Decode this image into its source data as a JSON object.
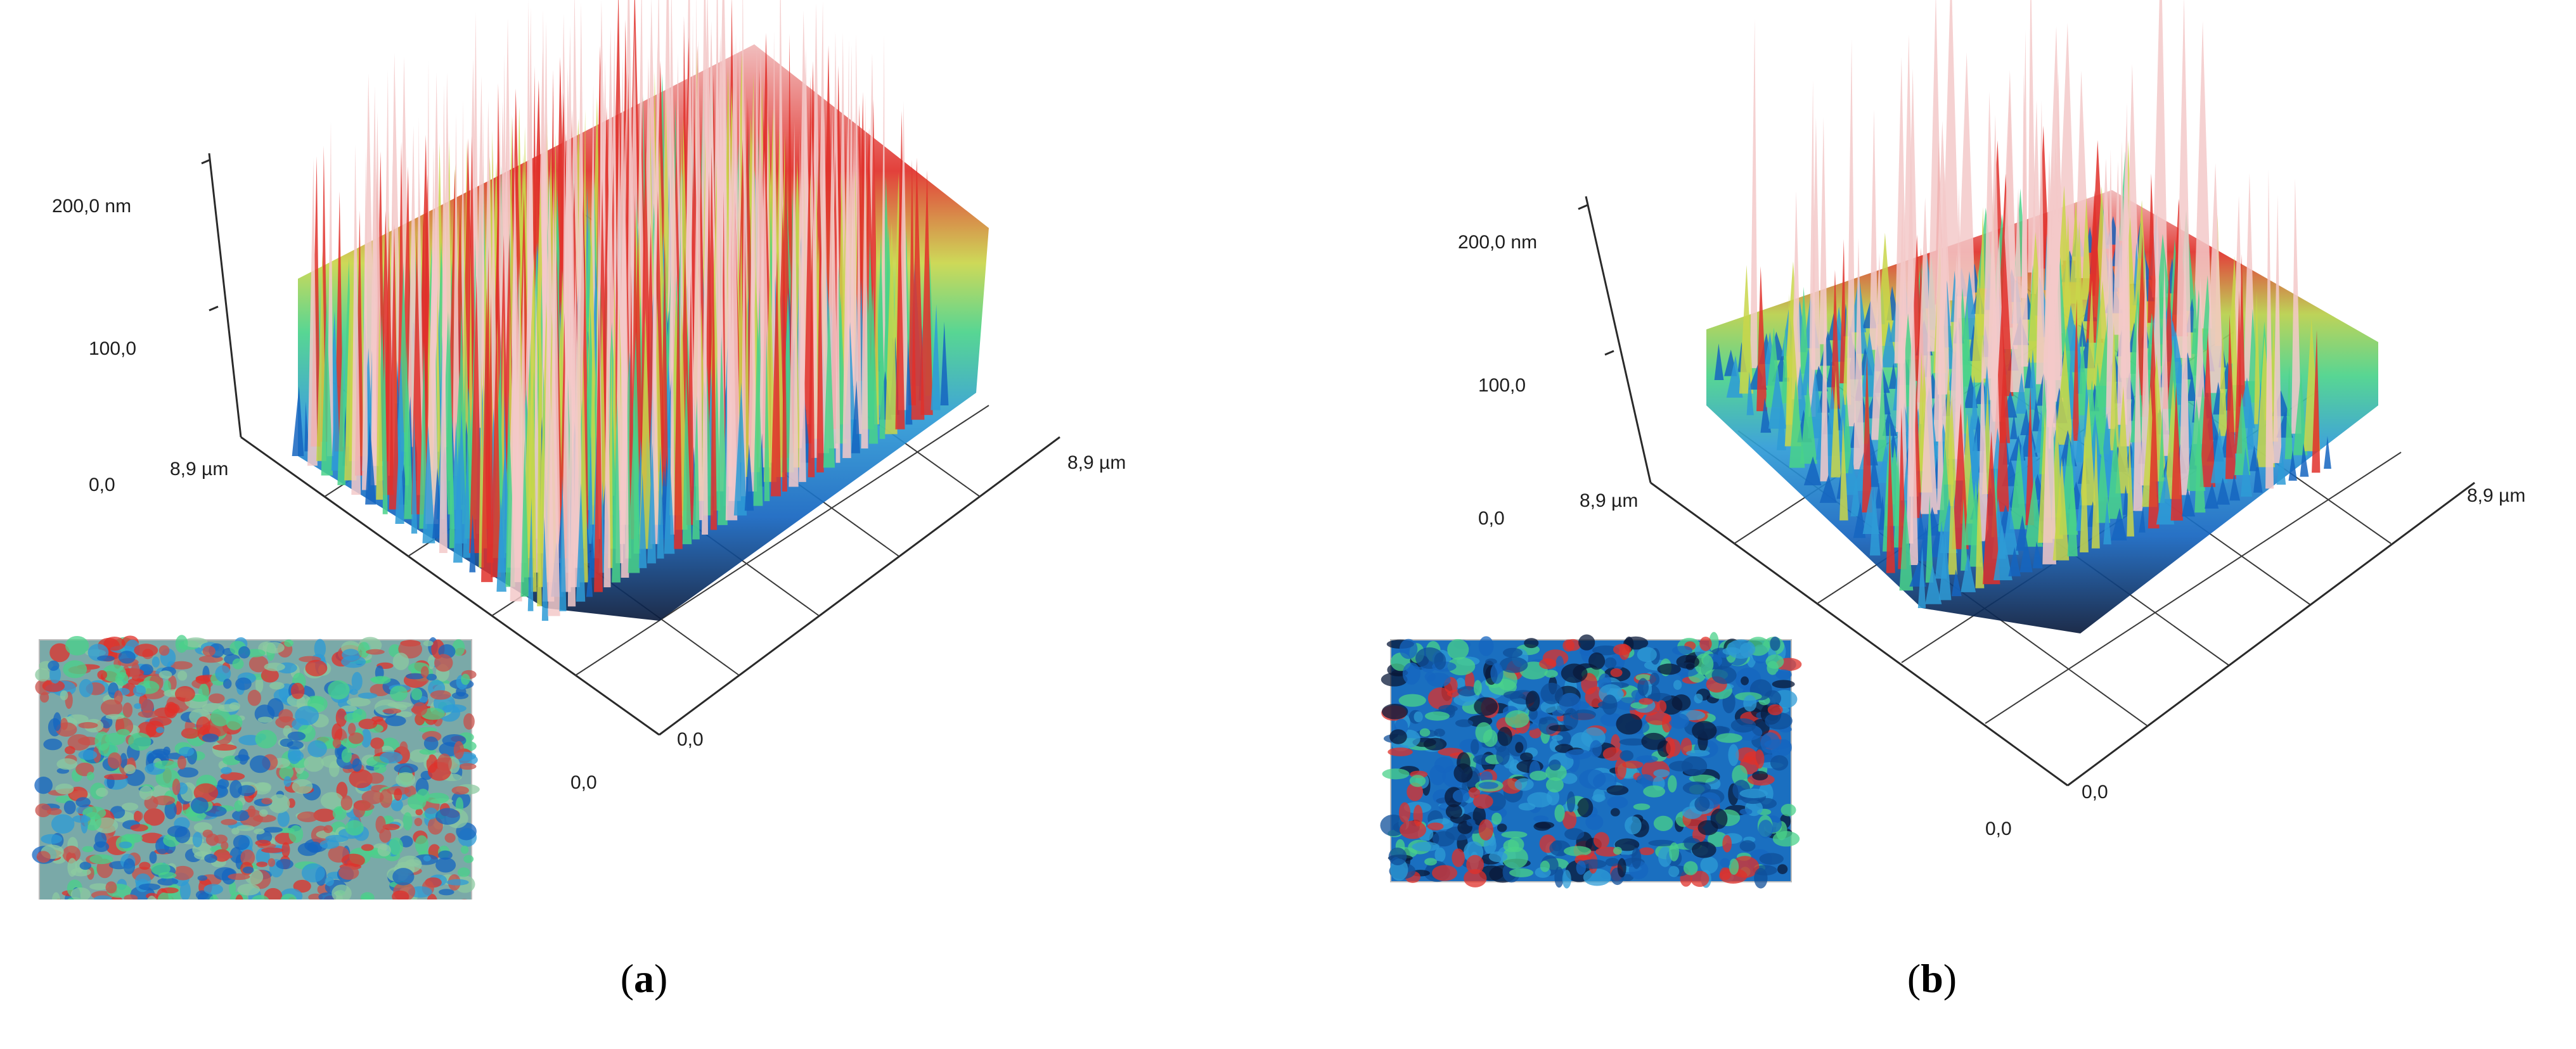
{
  "panels": [
    {
      "id": "a",
      "caption_letter": "a",
      "z_ticks": [
        "200,0 nm",
        "100,0",
        "0,0"
      ],
      "left_axis_end": "8,9 µm",
      "right_axis_end": "8,9 µm",
      "front_corner": "0,0",
      "right_corner": "0,0",
      "surface_style": "dense sharp red peaks, high roughness",
      "inset": "2D top-view height map (blue/green/red speckle)"
    },
    {
      "id": "b",
      "caption_letter": "b",
      "z_ticks": [
        "200,0 nm",
        "100,0",
        "0,0"
      ],
      "left_axis_end": "8,9 µm",
      "right_axis_end": "8,9 µm",
      "front_corner": "0,0",
      "right_corner": "0,0",
      "surface_style": "smoother blue/green surface with isolated red peaks",
      "inset": "2D top-view height map (mostly blue with red patches)"
    }
  ],
  "colormap": [
    "#0a1a3a",
    "#1565c0",
    "#2e9bd6",
    "#49d28a",
    "#c9d64a",
    "#e0302a",
    "#f3c9c9"
  ]
}
